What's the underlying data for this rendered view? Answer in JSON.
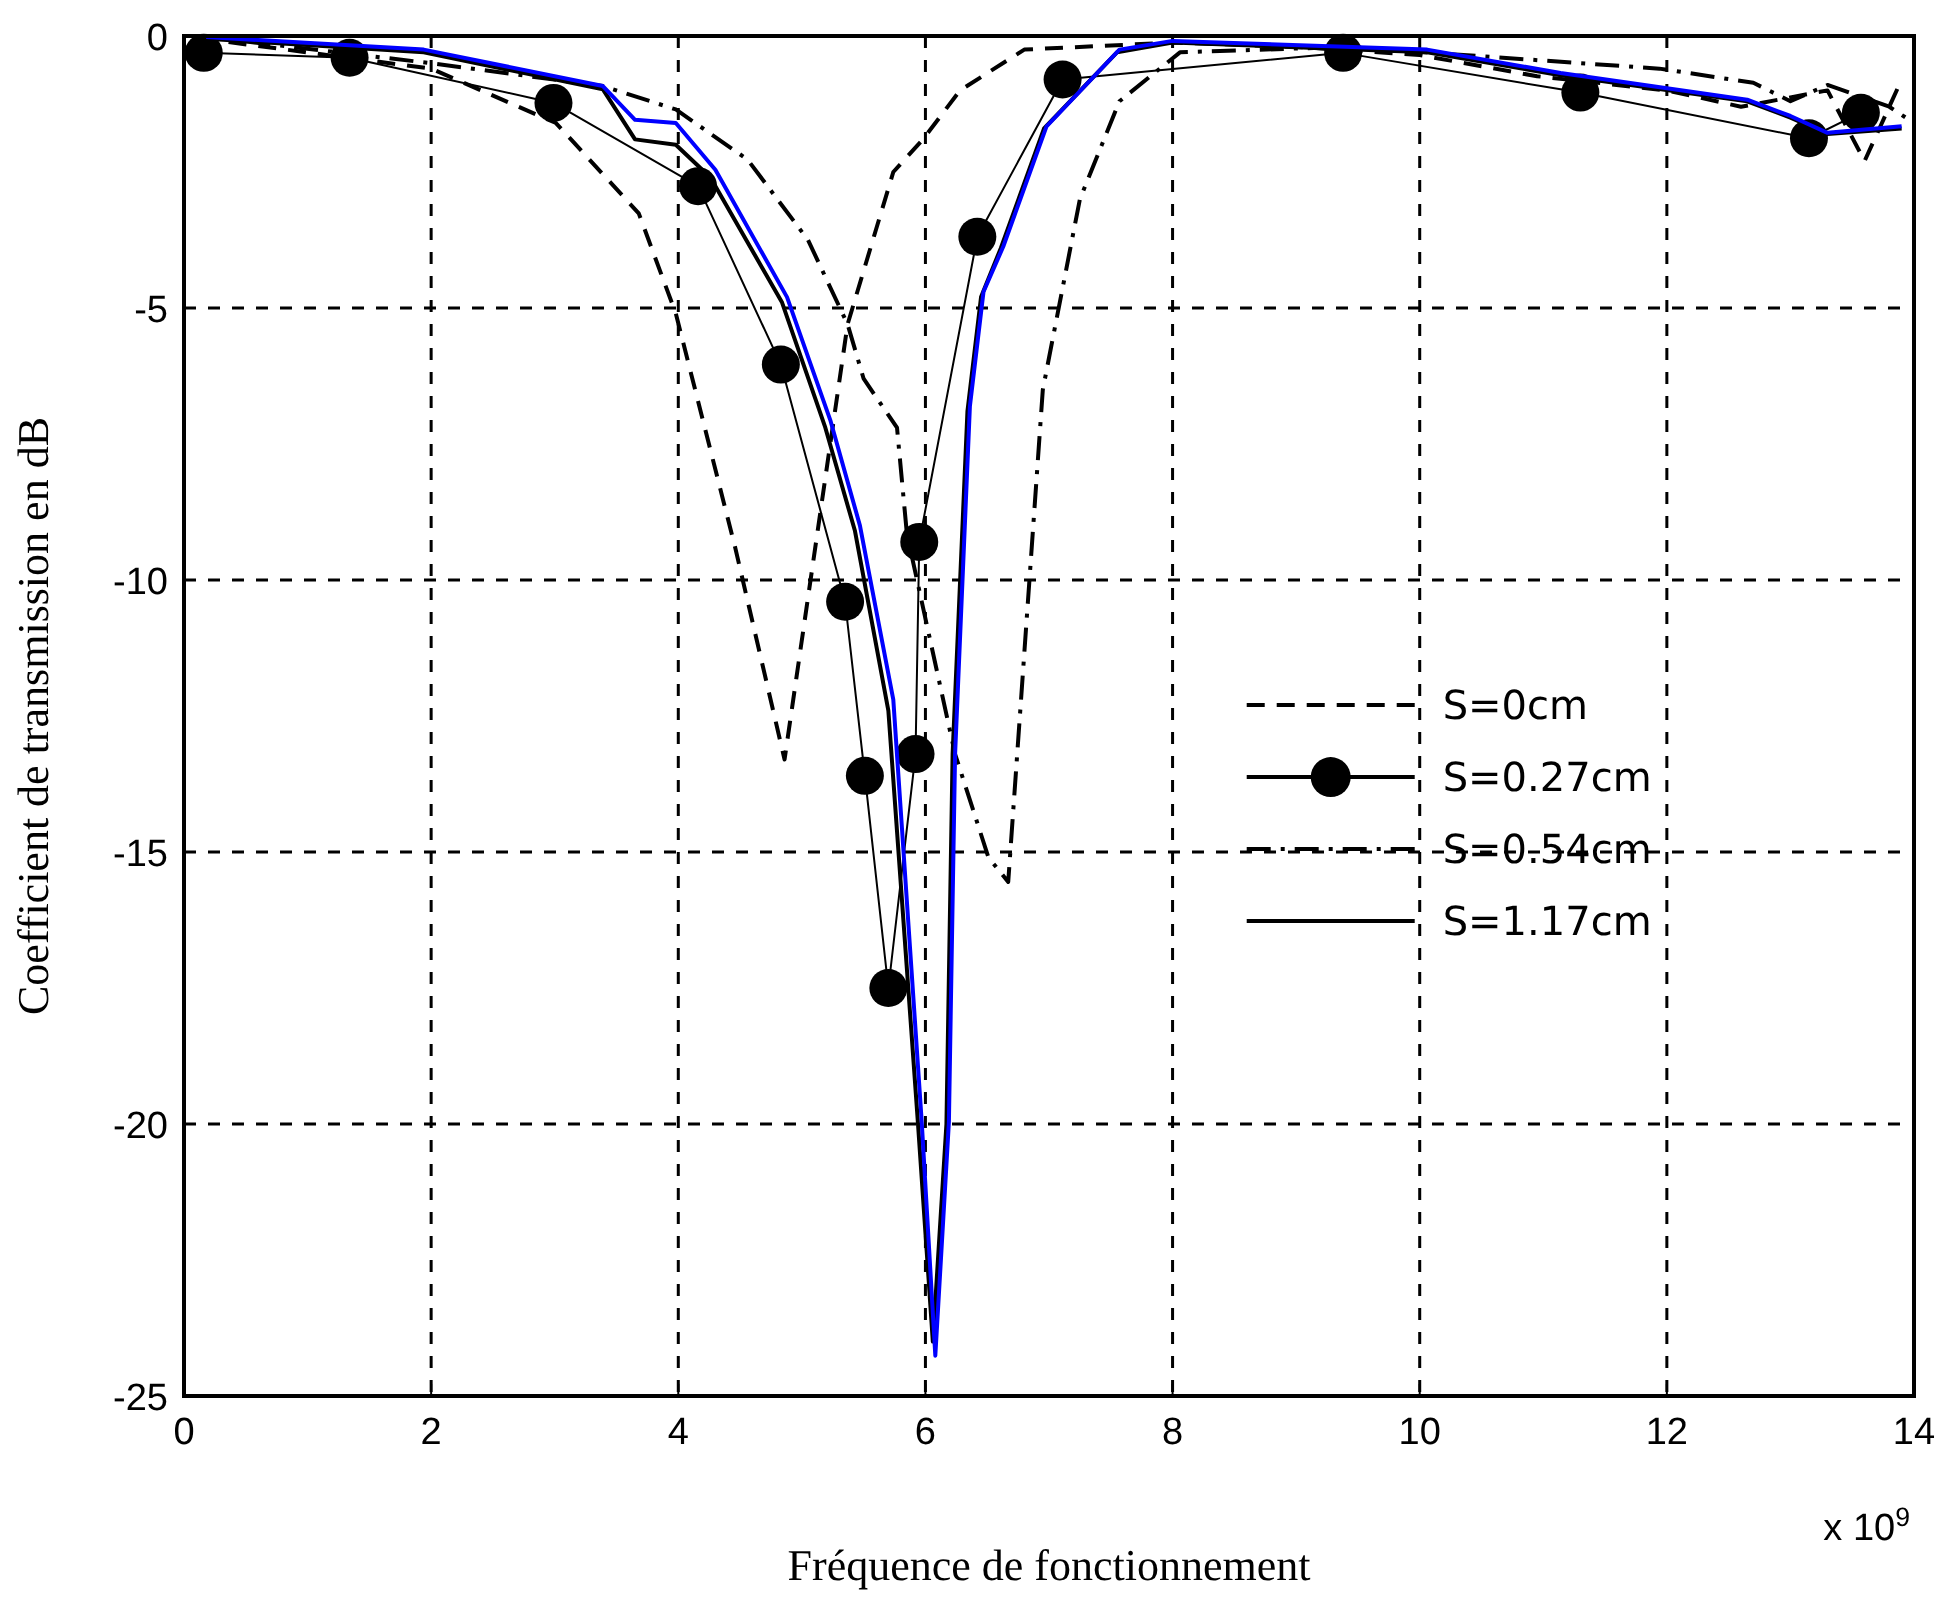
{
  "chart_data": {
    "type": "line",
    "xlabel": "Fréquence de fonctionnement",
    "ylabel": "Coefficient de transmission en dB",
    "xlim": [
      0,
      14
    ],
    "ylim": [
      -25,
      0
    ],
    "xticks": [
      0,
      2,
      4,
      6,
      8,
      10,
      12,
      14
    ],
    "yticks": [
      -25,
      -20,
      -15,
      -10,
      -5,
      0
    ],
    "grid": true,
    "legend": "right",
    "annotations": [
      "x 10$^{9}$"
    ],
    "series": [
      {
        "name": "S=0cm",
        "color": "#000000",
        "line_style": "dashed",
        "marker": "none",
        "x": [
          0.12,
          2.0,
          3.01,
          3.68,
          3.98,
          4.46,
          4.86,
          5.37,
          5.74,
          5.98,
          6.28,
          6.8,
          8.0,
          9.0,
          10.0,
          10.95,
          12.0,
          12.6,
          13.3,
          13.6,
          13.9
        ],
        "values": [
          -0.04,
          -0.6,
          -1.6,
          -3.26,
          -5.1,
          -9.4,
          -13.3,
          -5.3,
          -2.5,
          -1.9,
          -1.0,
          -0.25,
          -0.12,
          -0.2,
          -0.35,
          -0.74,
          -1.0,
          -1.3,
          -1.0,
          -2.3,
          -0.8
        ]
      },
      {
        "name": "S=0.27cm",
        "color": "#000000",
        "line_style": "solid",
        "marker": "circle",
        "x": [
          0.16,
          1.34,
          2.99,
          4.16,
          4.83,
          5.35,
          5.51,
          5.7,
          5.92,
          5.95,
          6.42,
          7.11,
          9.38,
          11.3,
          13.15,
          13.57
        ],
        "values": [
          -0.31,
          -0.4,
          -1.23,
          -2.76,
          -6.04,
          -10.4,
          -13.6,
          -17.5,
          -13.2,
          -9.3,
          -3.69,
          -0.8,
          -0.31,
          -1.04,
          -1.88,
          -1.41
        ]
      },
      {
        "name": "S=0.54cm",
        "color": "#000000",
        "line_style": "dashdot",
        "marker": "none",
        "x": [
          0.12,
          2.0,
          3.39,
          3.98,
          4.56,
          5.05,
          5.37,
          5.5,
          5.77,
          5.85,
          6.24,
          6.51,
          6.67,
          6.95,
          7.25,
          7.57,
          8.06,
          9.41,
          11.94,
          12.7,
          13.0,
          13.3,
          13.8,
          14.0
        ],
        "values": [
          0.0,
          -0.5,
          -0.92,
          -1.35,
          -2.27,
          -3.75,
          -5.3,
          -6.3,
          -7.2,
          -9.15,
          -13.2,
          -15.1,
          -15.55,
          -6.5,
          -3.0,
          -1.2,
          -0.3,
          -0.2,
          -0.6,
          -0.86,
          -1.2,
          -0.9,
          -1.3,
          -1.6
        ]
      },
      {
        "name": "S=1.17cm",
        "color": "#000000",
        "line_style": "solid",
        "marker": "none",
        "x": [
          0.18,
          1.94,
          3.39,
          3.65,
          3.98,
          4.26,
          4.84,
          5.19,
          5.43,
          5.7,
          5.94,
          6.06,
          6.17,
          6.22,
          6.34,
          6.45,
          6.61,
          6.96,
          7.55,
          8.0,
          10.06,
          11.14,
          12.65,
          13.0,
          13.3,
          13.9
        ],
        "values": [
          -0.05,
          -0.3,
          -0.98,
          -1.9,
          -2.0,
          -2.6,
          -4.9,
          -7.2,
          -9.1,
          -12.4,
          -20.0,
          -24.0,
          -20.0,
          -13.2,
          -6.9,
          -4.8,
          -3.9,
          -1.7,
          -0.3,
          -0.12,
          -0.3,
          -0.72,
          -1.2,
          -1.5,
          -1.8,
          -1.7
        ]
      },
      {
        "color": "#0000ff",
        "line_style": "solid",
        "marker": "none",
        "x": [
          0.18,
          1.94,
          3.39,
          3.65,
          3.98,
          4.3,
          4.88,
          5.23,
          5.47,
          5.74,
          5.97,
          6.08,
          6.19,
          6.24,
          6.36,
          6.47,
          6.63,
          6.98,
          7.57,
          8.0,
          10.06,
          11.14,
          12.65,
          13.0,
          13.3,
          13.9
        ],
        "values": [
          -0.02,
          -0.25,
          -0.92,
          -1.54,
          -1.6,
          -2.46,
          -4.8,
          -7.06,
          -9.0,
          -12.2,
          -19.96,
          -24.26,
          -19.96,
          -13.2,
          -6.8,
          -4.7,
          -3.87,
          -1.66,
          -0.25,
          -0.09,
          -0.25,
          -0.68,
          -1.17,
          -1.47,
          -1.78,
          -1.66
        ]
      }
    ]
  }
}
